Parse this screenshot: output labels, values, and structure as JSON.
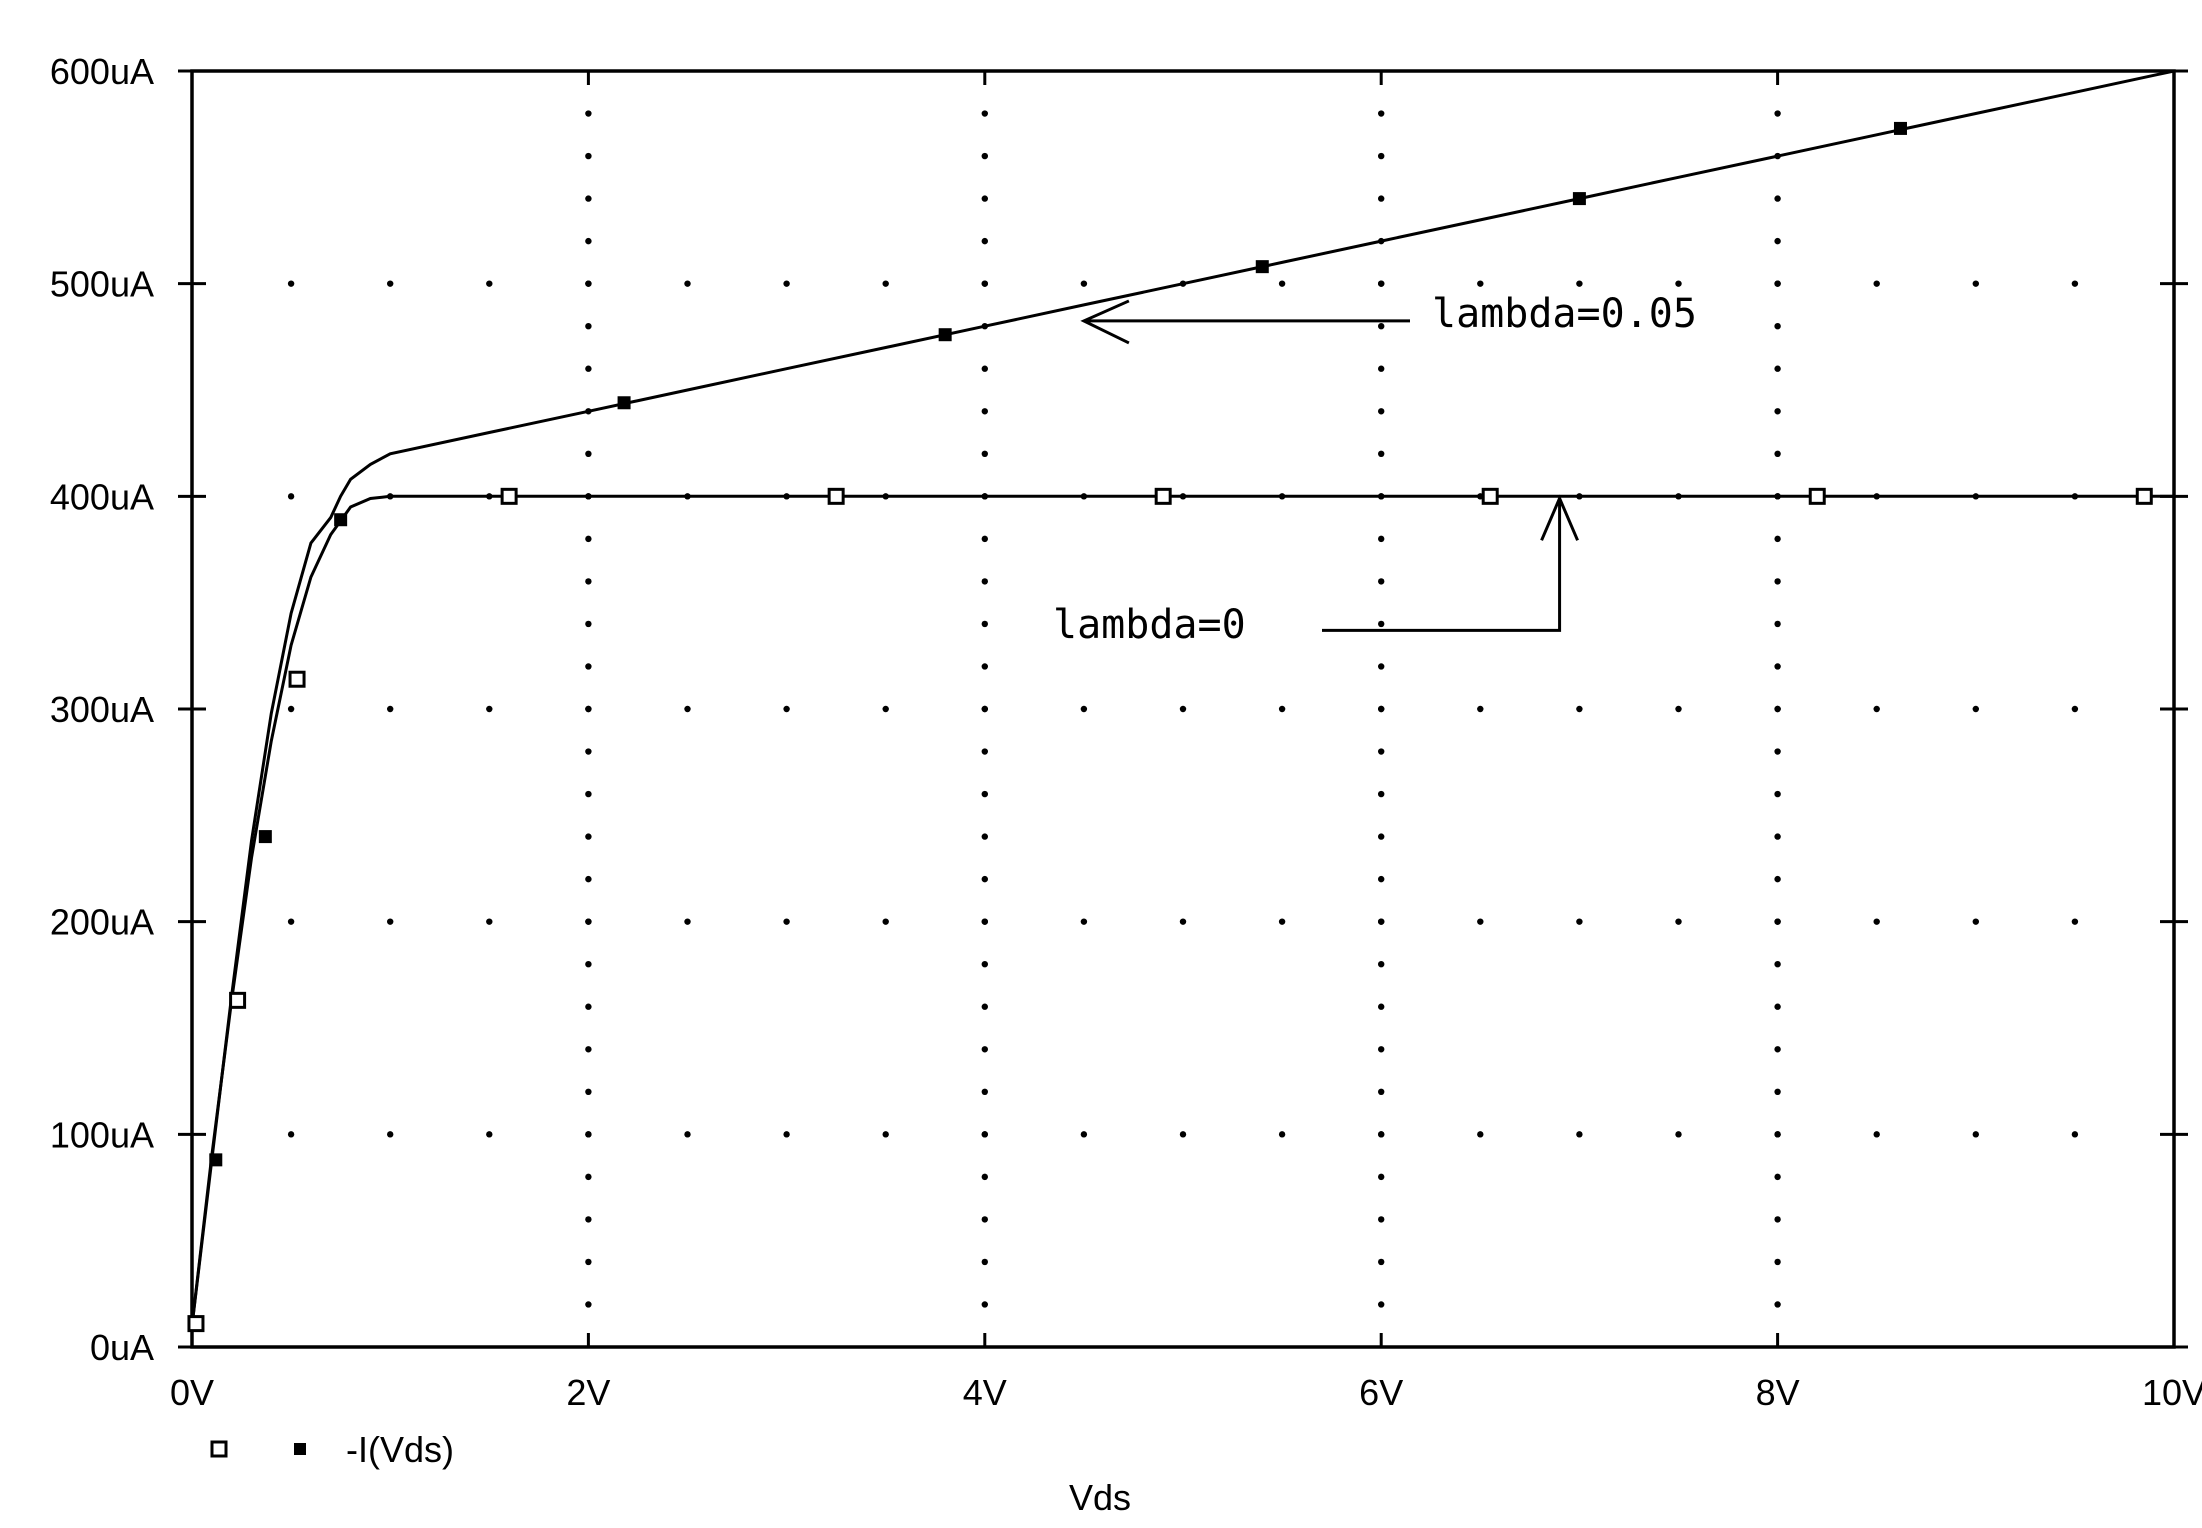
{
  "chart_data": {
    "type": "line",
    "xlabel": "Vds",
    "ylabel": "",
    "title": "",
    "xlim": [
      0,
      10
    ],
    "ylim": [
      0,
      600
    ],
    "x_unit": "V",
    "y_unit": "uA",
    "x_ticks": [
      0,
      2,
      4,
      6,
      8,
      10
    ],
    "x_tick_labels": [
      "0V",
      "2V",
      "4V",
      "6V",
      "8V",
      "10V"
    ],
    "y_ticks": [
      0,
      100,
      200,
      300,
      400,
      500,
      600
    ],
    "y_tick_labels": [
      "0uA",
      "100uA",
      "200uA",
      "300uA",
      "400uA",
      "500uA",
      "600uA"
    ],
    "grid": "dotted",
    "legend": {
      "placement": "bottom-left",
      "label": "-I(Vds)"
    },
    "series": [
      {
        "marker": "open-square",
        "x": [
          0,
          0.1,
          0.2,
          0.3,
          0.4,
          0.5,
          0.6,
          0.7,
          0.8,
          0.9,
          1.0,
          1.6,
          2.0,
          3.0,
          3.25,
          4.0,
          4.9,
          5.0,
          6.0,
          6.55,
          7.0,
          8.0,
          8.2,
          9.0,
          9.85,
          10.0
        ],
        "y": [
          10,
          90,
          163,
          230,
          285,
          330,
          362,
          382,
          395,
          399,
          400,
          400,
          400,
          400,
          400,
          400,
          400,
          400,
          400,
          400,
          400,
          400,
          400,
          400,
          400,
          400
        ],
        "marker_points": [
          [
            0.02,
            11
          ],
          [
            0.23,
            163
          ],
          [
            0.53,
            314
          ],
          [
            1.6,
            400
          ],
          [
            3.25,
            400
          ],
          [
            4.9,
            400
          ],
          [
            6.55,
            400
          ],
          [
            8.2,
            400
          ],
          [
            9.85,
            400
          ]
        ]
      },
      {
        "marker": "filled-square",
        "x": [
          0,
          0.1,
          0.2,
          0.3,
          0.4,
          0.5,
          0.6,
          0.7,
          0.75,
          0.8,
          0.9,
          1.0,
          1.5,
          2.0,
          2.5,
          3.0,
          3.5,
          4.0,
          4.5,
          5.0,
          5.5,
          6.0,
          6.5,
          7.0,
          7.5,
          8.0,
          8.5,
          9.0,
          9.5,
          10.0
        ],
        "y": [
          10,
          88,
          165,
          238,
          298,
          345,
          378,
          390,
          400,
          408,
          415,
          420,
          430,
          440,
          450,
          460,
          470,
          480,
          490,
          500,
          510,
          520,
          530,
          540,
          550,
          560,
          570,
          580,
          590,
          600
        ],
        "marker_points": [
          [
            0.12,
            88
          ],
          [
            0.37,
            240
          ],
          [
            0.75,
            389
          ],
          [
            2.18,
            444
          ],
          [
            3.8,
            476
          ],
          [
            5.4,
            508
          ],
          [
            7.0,
            540
          ],
          [
            8.62,
            573
          ]
        ]
      }
    ],
    "annotations": [
      {
        "text": "lambda=0.05",
        "arrow_to": [
          4.5,
          490
        ]
      },
      {
        "text": "lambda=0",
        "arrow_to": [
          6.9,
          400
        ]
      }
    ]
  }
}
